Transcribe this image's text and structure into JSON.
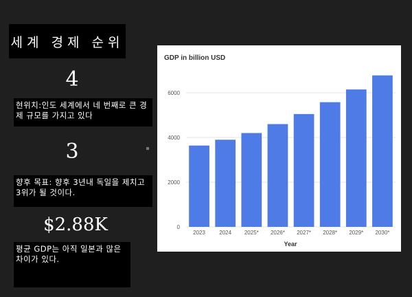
{
  "left": {
    "title": "세계 경제 순위",
    "rank_current": "4",
    "rank_current_text": "현위치:인도 세계에서 네 번째로 큰 경제 규모를 가지고 있다",
    "rank_target": "3",
    "rank_target_text": "향후 목표: 향후 3년내 독일을 제치고 3위가 될 것이다.",
    "gdp_per_capita": "$2.88K",
    "gdp_text": "평균 GDP는 아직 일본과 많은 차이가 있다."
  },
  "chart_data": {
    "type": "bar",
    "title": "GDP in billion USD",
    "xlabel": "Year",
    "ylabel": "",
    "categories": [
      "2023",
      "2024",
      "2025*",
      "2026*",
      "2027*",
      "2028*",
      "2029*",
      "2030*"
    ],
    "values": [
      3640,
      3900,
      4200,
      4600,
      5050,
      5580,
      6150,
      6780
    ],
    "ylim": [
      0,
      7200
    ],
    "yticks": [
      0,
      2000,
      4000,
      6000
    ],
    "bar_color": "#4f7be6",
    "grid": true
  }
}
